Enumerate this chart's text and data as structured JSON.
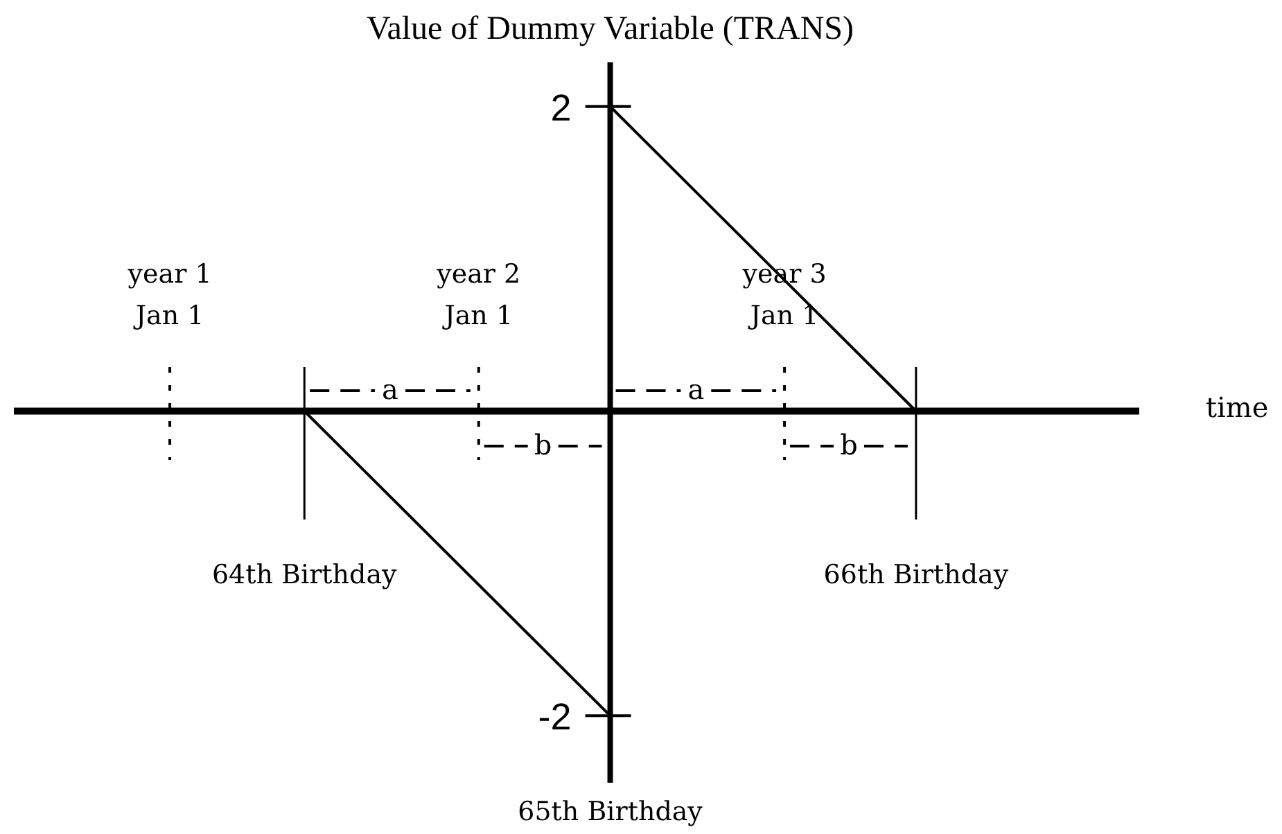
{
  "chart_data": {
    "type": "line",
    "title": "Value of Dummy Variable (TRANS)",
    "xlabel": "time",
    "x": [
      64,
      65,
      65,
      66
    ],
    "series": [
      {
        "color": "#000000",
        "values": [
          0,
          -2,
          2,
          0
        ]
      }
    ],
    "xlim": [
      63.05,
      66.73
    ],
    "xticks": [
      {
        "value": 64,
        "label": "64th Birthday"
      },
      {
        "value": 66,
        "label": "66th Birthday"
      }
    ],
    "ylim": [
      -2.44,
      2.29
    ],
    "yticks": [
      -2,
      2
    ],
    "ref_lines": [
      {
        "axis": "x",
        "value": 63.56,
        "label": "year 1\nJan 1",
        "line_style": "dotted"
      },
      {
        "axis": "x",
        "value": 64.57,
        "label": "year 2\nJan 1",
        "line_style": "dotted"
      },
      {
        "axis": "x",
        "value": 65.57,
        "label": "year 3\nJan 1",
        "line_style": "dotted"
      }
    ],
    "annotations": [
      "a",
      "b",
      "a",
      "b",
      "65th Birthday"
    ],
    "marker": "none"
  }
}
